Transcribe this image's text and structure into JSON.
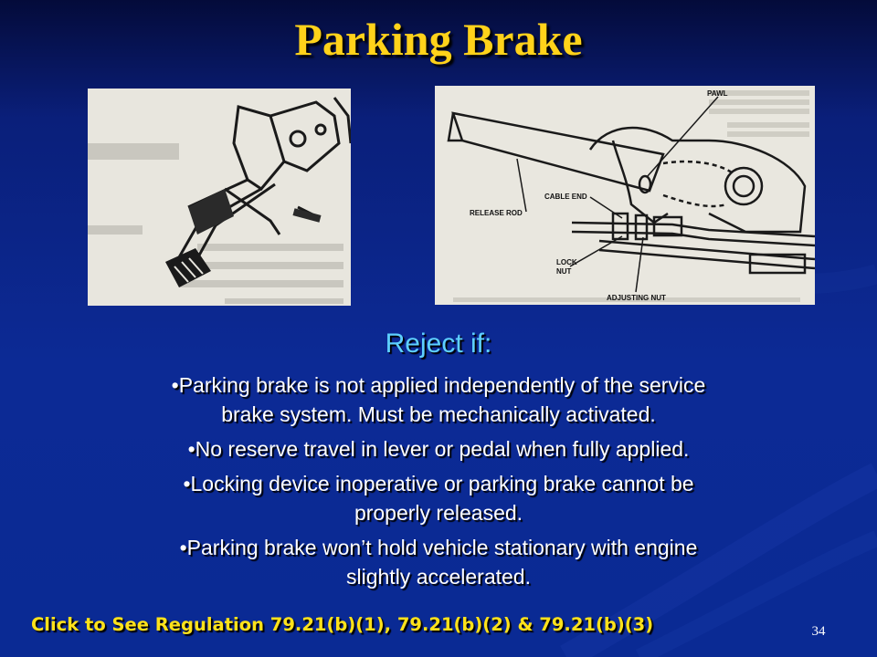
{
  "slide": {
    "title": "Parking Brake",
    "subheading": "Reject if:",
    "bullets": [
      {
        "line1": "•Parking brake is not applied independently of the service",
        "line2": "brake system. Must be mechanically activated."
      },
      {
        "line1": "•No reserve travel in lever or pedal when fully applied.",
        "line2": ""
      },
      {
        "line1": "•Locking device inoperative or parking brake cannot be",
        "line2": "properly released."
      },
      {
        "line1": "•Parking brake won’t hold vehicle stationary with engine",
        "line2": "slightly accelerated."
      }
    ],
    "regulation_link": "Click to See Regulation 79.21(b)(1), 79.21(b)(2) & 79.21(b)(3)",
    "page_number": "34"
  },
  "diagram": {
    "labels": {
      "pawl": "PAWL",
      "cable_end": "CABLE END",
      "release_rod": "RELEASE ROD",
      "lock": "LOCK",
      "nut": "NUT",
      "adjusting_nut": "ADJUSTING NUT"
    }
  }
}
